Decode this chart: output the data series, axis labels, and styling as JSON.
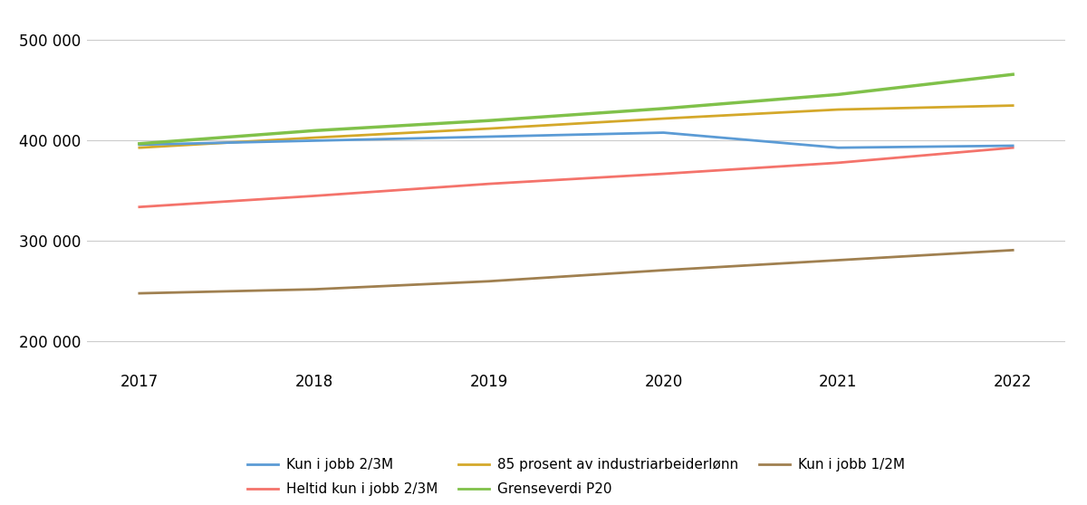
{
  "years": [
    2017,
    2018,
    2019,
    2020,
    2021,
    2022
  ],
  "series": {
    "Kun i jobb 2/3M": {
      "values": [
        396000,
        400000,
        404000,
        408000,
        393000,
        395000
      ],
      "color": "#5b9bd5",
      "linewidth": 2.0
    },
    "Heltid kun i jobb 2/3M": {
      "values": [
        334000,
        345000,
        357000,
        367000,
        378000,
        393000
      ],
      "color": "#f4736b",
      "linewidth": 2.0
    },
    "85 prosent av industriarbeiderlonn": {
      "values": [
        393000,
        403000,
        412000,
        422000,
        431000,
        435000
      ],
      "color": "#d4a82a",
      "linewidth": 2.0
    },
    "Grenseverdi P20": {
      "values": [
        397000,
        410000,
        420000,
        432000,
        446000,
        466000
      ],
      "color": "#80c14a",
      "linewidth": 2.5
    },
    "Kun i jobb 1/2M": {
      "values": [
        248000,
        252000,
        260000,
        271000,
        281000,
        291000
      ],
      "color": "#a08050",
      "linewidth": 2.0
    }
  },
  "legend_labels": {
    "Kun i jobb 2/3M": "Kun i jobb 2/3M",
    "Heltid kun i jobb 2/3M": "Heltid kun i jobb 2/3M",
    "85 prosent av industriarbeiderlonn": "85 prosent av industriarbeiderlønn",
    "Grenseverdi P20": "Grenseverdi P20",
    "Kun i jobb 1/2M": "Kun i jobb 1/2M"
  },
  "legend_order": [
    "Kun i jobb 2/3M",
    "Heltid kun i jobb 2/3M",
    "85 prosent av industriarbeiderlonn",
    "Grenseverdi P20",
    "Kun i jobb 1/2M"
  ],
  "yticks": [
    200000,
    300000,
    400000,
    500000
  ],
  "ylim": [
    178000,
    525000
  ],
  "xlim": [
    2016.7,
    2022.3
  ],
  "background_color": "#ffffff",
  "grid_color": "#cccccc",
  "tick_label_fontsize": 12,
  "legend_fontsize": 11
}
